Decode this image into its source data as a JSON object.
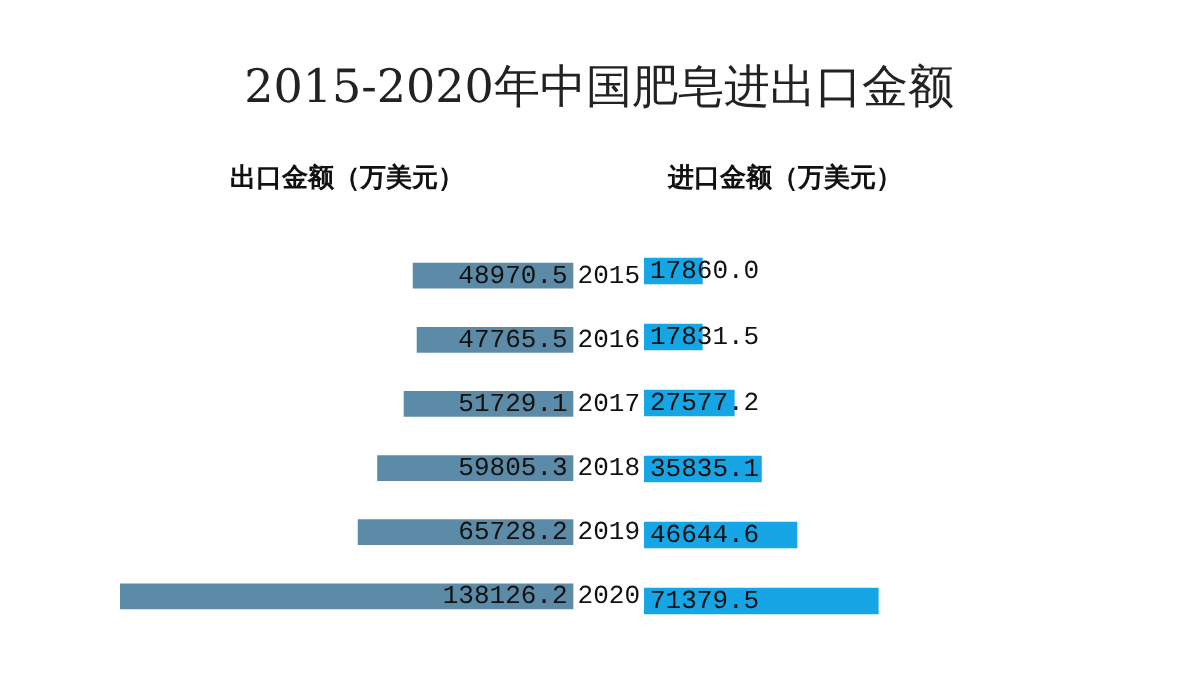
{
  "chart_data": [
    {
      "type": "bar",
      "orientation": "horizontal",
      "title": "2015-2020年中国肥皂进出口金额",
      "subtitle": "出口金额（万美元）",
      "categories": [
        "2015",
        "2016",
        "2017",
        "2018",
        "2019",
        "2020"
      ],
      "values": [
        48970.5,
        47765.5,
        51729.1,
        59805.3,
        65728.2,
        138126.2
      ],
      "value_labels": [
        "48970.5",
        "47765.5",
        "51729.1",
        "59805.3",
        "65728.2",
        "138126.2"
      ],
      "color": "#5b8ba6",
      "tick_labels": "y"
    },
    {
      "type": "bar",
      "orientation": "horizontal",
      "subtitle": "进口金额（万美元）",
      "categories": [
        "2015",
        "2016",
        "2017",
        "2018",
        "2019",
        "2020"
      ],
      "values": [
        17860.0,
        17831.5,
        27577.2,
        35835.1,
        46644.6,
        71379.5
      ],
      "value_labels": [
        "17860.0",
        "17831.5",
        "27577.2",
        "35835.1",
        "46644.6",
        "71379.5"
      ],
      "color": "#16a6e6",
      "tick_labels": false
    }
  ]
}
